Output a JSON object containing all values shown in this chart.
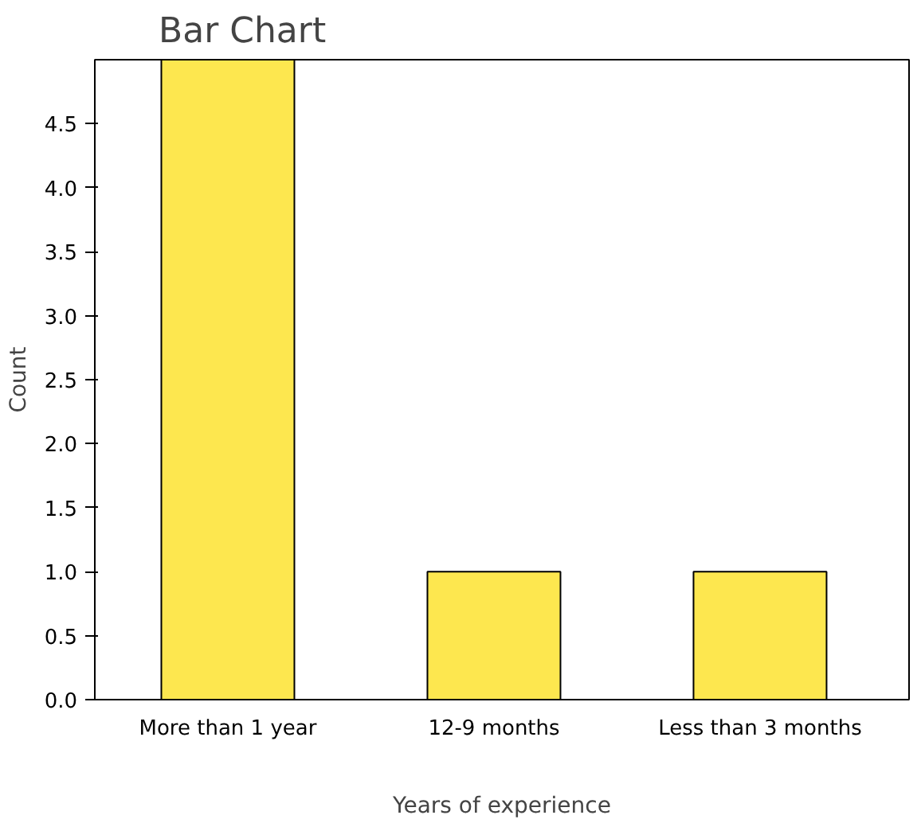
{
  "chart_data": {
    "type": "bar",
    "title": "Bar Chart",
    "xlabel": "Years of experience",
    "ylabel": "Count",
    "categories": [
      "More than 1 year",
      "12-9 months",
      "Less than 3 months"
    ],
    "values": [
      5,
      1,
      1
    ],
    "color": "#fde74f",
    "ylim": [
      0,
      5
    ],
    "yticks": [
      {
        "value": 0,
        "label": "0.0"
      },
      {
        "value": 0.5,
        "label": "0.5"
      },
      {
        "value": 1,
        "label": "1.0"
      },
      {
        "value": 1.5,
        "label": "1.5"
      },
      {
        "value": 2,
        "label": "2.0"
      },
      {
        "value": 2.5,
        "label": "2.5"
      },
      {
        "value": 3,
        "label": "3.0"
      },
      {
        "value": 3.5,
        "label": "3.5"
      },
      {
        "value": 4,
        "label": "4.0"
      },
      {
        "value": 4.5,
        "label": "4.5"
      }
    ],
    "grid": false
  }
}
